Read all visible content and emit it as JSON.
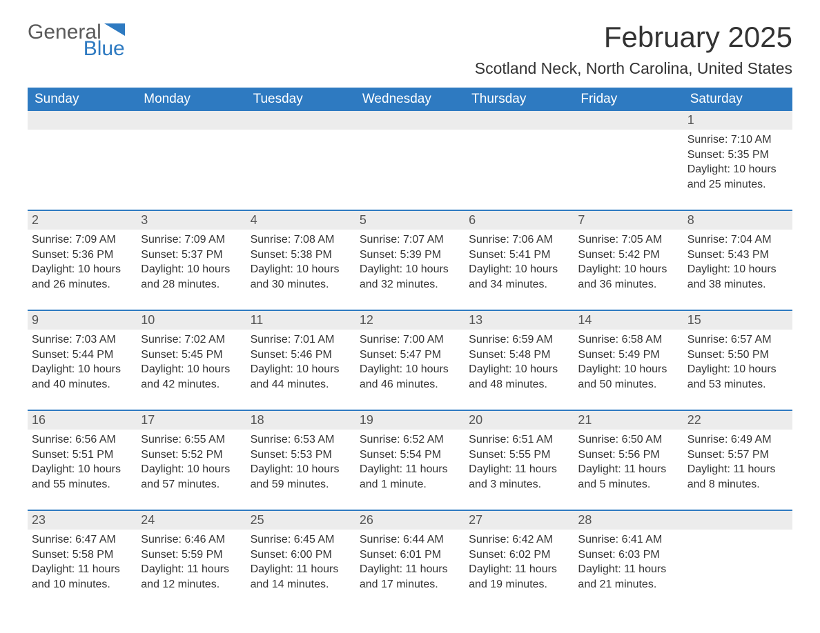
{
  "logo": {
    "text1": "General",
    "text2": "Blue"
  },
  "title": "February 2025",
  "location": "Scotland Neck, North Carolina, United States",
  "colors": {
    "header_bg": "#2e7ac1",
    "header_text": "#ffffff",
    "daynum_bg": "#ececec",
    "body_text": "#333333",
    "page_bg": "#ffffff",
    "rule": "#2e7ac1"
  },
  "fonts": {
    "title_size_pt": 32,
    "location_size_pt": 17,
    "weekday_size_pt": 14,
    "daynum_size_pt": 14,
    "body_size_pt": 12
  },
  "weekdays": [
    "Sunday",
    "Monday",
    "Tuesday",
    "Wednesday",
    "Thursday",
    "Friday",
    "Saturday"
  ],
  "weeks": [
    [
      {
        "n": "",
        "sunrise": "",
        "sunset": "",
        "daylight": ""
      },
      {
        "n": "",
        "sunrise": "",
        "sunset": "",
        "daylight": ""
      },
      {
        "n": "",
        "sunrise": "",
        "sunset": "",
        "daylight": ""
      },
      {
        "n": "",
        "sunrise": "",
        "sunset": "",
        "daylight": ""
      },
      {
        "n": "",
        "sunrise": "",
        "sunset": "",
        "daylight": ""
      },
      {
        "n": "",
        "sunrise": "",
        "sunset": "",
        "daylight": ""
      },
      {
        "n": "1",
        "sunrise": "Sunrise: 7:10 AM",
        "sunset": "Sunset: 5:35 PM",
        "daylight": "Daylight: 10 hours and 25 minutes."
      }
    ],
    [
      {
        "n": "2",
        "sunrise": "Sunrise: 7:09 AM",
        "sunset": "Sunset: 5:36 PM",
        "daylight": "Daylight: 10 hours and 26 minutes."
      },
      {
        "n": "3",
        "sunrise": "Sunrise: 7:09 AM",
        "sunset": "Sunset: 5:37 PM",
        "daylight": "Daylight: 10 hours and 28 minutes."
      },
      {
        "n": "4",
        "sunrise": "Sunrise: 7:08 AM",
        "sunset": "Sunset: 5:38 PM",
        "daylight": "Daylight: 10 hours and 30 minutes."
      },
      {
        "n": "5",
        "sunrise": "Sunrise: 7:07 AM",
        "sunset": "Sunset: 5:39 PM",
        "daylight": "Daylight: 10 hours and 32 minutes."
      },
      {
        "n": "6",
        "sunrise": "Sunrise: 7:06 AM",
        "sunset": "Sunset: 5:41 PM",
        "daylight": "Daylight: 10 hours and 34 minutes."
      },
      {
        "n": "7",
        "sunrise": "Sunrise: 7:05 AM",
        "sunset": "Sunset: 5:42 PM",
        "daylight": "Daylight: 10 hours and 36 minutes."
      },
      {
        "n": "8",
        "sunrise": "Sunrise: 7:04 AM",
        "sunset": "Sunset: 5:43 PM",
        "daylight": "Daylight: 10 hours and 38 minutes."
      }
    ],
    [
      {
        "n": "9",
        "sunrise": "Sunrise: 7:03 AM",
        "sunset": "Sunset: 5:44 PM",
        "daylight": "Daylight: 10 hours and 40 minutes."
      },
      {
        "n": "10",
        "sunrise": "Sunrise: 7:02 AM",
        "sunset": "Sunset: 5:45 PM",
        "daylight": "Daylight: 10 hours and 42 minutes."
      },
      {
        "n": "11",
        "sunrise": "Sunrise: 7:01 AM",
        "sunset": "Sunset: 5:46 PM",
        "daylight": "Daylight: 10 hours and 44 minutes."
      },
      {
        "n": "12",
        "sunrise": "Sunrise: 7:00 AM",
        "sunset": "Sunset: 5:47 PM",
        "daylight": "Daylight: 10 hours and 46 minutes."
      },
      {
        "n": "13",
        "sunrise": "Sunrise: 6:59 AM",
        "sunset": "Sunset: 5:48 PM",
        "daylight": "Daylight: 10 hours and 48 minutes."
      },
      {
        "n": "14",
        "sunrise": "Sunrise: 6:58 AM",
        "sunset": "Sunset: 5:49 PM",
        "daylight": "Daylight: 10 hours and 50 minutes."
      },
      {
        "n": "15",
        "sunrise": "Sunrise: 6:57 AM",
        "sunset": "Sunset: 5:50 PM",
        "daylight": "Daylight: 10 hours and 53 minutes."
      }
    ],
    [
      {
        "n": "16",
        "sunrise": "Sunrise: 6:56 AM",
        "sunset": "Sunset: 5:51 PM",
        "daylight": "Daylight: 10 hours and 55 minutes."
      },
      {
        "n": "17",
        "sunrise": "Sunrise: 6:55 AM",
        "sunset": "Sunset: 5:52 PM",
        "daylight": "Daylight: 10 hours and 57 minutes."
      },
      {
        "n": "18",
        "sunrise": "Sunrise: 6:53 AM",
        "sunset": "Sunset: 5:53 PM",
        "daylight": "Daylight: 10 hours and 59 minutes."
      },
      {
        "n": "19",
        "sunrise": "Sunrise: 6:52 AM",
        "sunset": "Sunset: 5:54 PM",
        "daylight": "Daylight: 11 hours and 1 minute."
      },
      {
        "n": "20",
        "sunrise": "Sunrise: 6:51 AM",
        "sunset": "Sunset: 5:55 PM",
        "daylight": "Daylight: 11 hours and 3 minutes."
      },
      {
        "n": "21",
        "sunrise": "Sunrise: 6:50 AM",
        "sunset": "Sunset: 5:56 PM",
        "daylight": "Daylight: 11 hours and 5 minutes."
      },
      {
        "n": "22",
        "sunrise": "Sunrise: 6:49 AM",
        "sunset": "Sunset: 5:57 PM",
        "daylight": "Daylight: 11 hours and 8 minutes."
      }
    ],
    [
      {
        "n": "23",
        "sunrise": "Sunrise: 6:47 AM",
        "sunset": "Sunset: 5:58 PM",
        "daylight": "Daylight: 11 hours and 10 minutes."
      },
      {
        "n": "24",
        "sunrise": "Sunrise: 6:46 AM",
        "sunset": "Sunset: 5:59 PM",
        "daylight": "Daylight: 11 hours and 12 minutes."
      },
      {
        "n": "25",
        "sunrise": "Sunrise: 6:45 AM",
        "sunset": "Sunset: 6:00 PM",
        "daylight": "Daylight: 11 hours and 14 minutes."
      },
      {
        "n": "26",
        "sunrise": "Sunrise: 6:44 AM",
        "sunset": "Sunset: 6:01 PM",
        "daylight": "Daylight: 11 hours and 17 minutes."
      },
      {
        "n": "27",
        "sunrise": "Sunrise: 6:42 AM",
        "sunset": "Sunset: 6:02 PM",
        "daylight": "Daylight: 11 hours and 19 minutes."
      },
      {
        "n": "28",
        "sunrise": "Sunrise: 6:41 AM",
        "sunset": "Sunset: 6:03 PM",
        "daylight": "Daylight: 11 hours and 21 minutes."
      },
      {
        "n": "",
        "sunrise": "",
        "sunset": "",
        "daylight": ""
      }
    ]
  ]
}
